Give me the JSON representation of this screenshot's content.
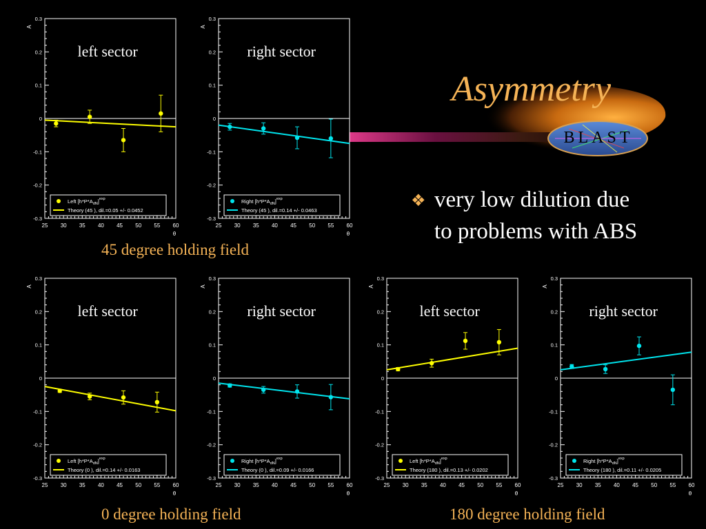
{
  "title": "Asymmetry",
  "logo_text": "BLAST",
  "bullet": {
    "marker": "❖",
    "line1": "very low dilution due",
    "line2": "to problems with ABS"
  },
  "captions": {
    "field45": "45 degree holding field",
    "field0": "0 degree holding field",
    "field180": "180 degree holding field"
  },
  "colors": {
    "caption": "#f5b356",
    "yellow": "#ffff00",
    "cyan": "#00e5ee"
  },
  "chart_data": [
    {
      "id": "p45L",
      "type": "scatter",
      "label": "left sector",
      "color": "#ffff00",
      "ylabel": "A",
      "xlabel": "θ",
      "xlim": [
        25,
        60
      ],
      "ylim": [
        -0.3,
        0.3
      ],
      "xticks": [
        "25",
        "30",
        "35",
        "40",
        "45",
        "50",
        "55",
        "60"
      ],
      "yticks": [
        "-0.3",
        "-0.2",
        "-0.1",
        "0",
        "0.1",
        "0.2",
        "0.3"
      ],
      "legend_data": "Left [h*P*A",
      "legend_sub": "dN",
      "legend_sup": "exp",
      "legend_close": "]",
      "legend_theory": "Theory (45 ), dil.=0.05 +/- 0.0452",
      "points": [
        {
          "x": 28.0,
          "y": -0.015,
          "err": 0.01
        },
        {
          "x": 37.0,
          "y": 0.005,
          "err": 0.02
        },
        {
          "x": 46.0,
          "y": -0.065,
          "err": 0.035
        },
        {
          "x": 56.0,
          "y": 0.015,
          "err": 0.055
        }
      ],
      "theory": [
        [
          25,
          -0.005
        ],
        [
          60,
          -0.025
        ]
      ]
    },
    {
      "id": "p45R",
      "type": "scatter",
      "label": "right sector",
      "color": "#00e5ee",
      "ylabel": "A",
      "xlabel": "θ",
      "xlim": [
        25,
        60
      ],
      "ylim": [
        -0.3,
        0.3
      ],
      "xticks": [
        "25",
        "30",
        "35",
        "40",
        "45",
        "50",
        "55",
        "60"
      ],
      "yticks": [
        "-0.3",
        "-0.2",
        "-0.1",
        "0",
        "0.1",
        "0.2",
        "0.3"
      ],
      "legend_data": "Right [h*P*A",
      "legend_sub": "dN",
      "legend_sup": "exp",
      "legend_close": "]",
      "legend_theory": "Theory (45 ), dil.=0.14 +/- 0.0463",
      "points": [
        {
          "x": 28.0,
          "y": -0.025,
          "err": 0.01
        },
        {
          "x": 37.0,
          "y": -0.03,
          "err": 0.017
        },
        {
          "x": 46.0,
          "y": -0.058,
          "err": 0.033
        },
        {
          "x": 55.0,
          "y": -0.06,
          "err": 0.058
        }
      ],
      "theory": [
        [
          25,
          -0.02
        ],
        [
          60,
          -0.075
        ]
      ]
    },
    {
      "id": "p0L",
      "type": "scatter",
      "label": "left sector",
      "color": "#ffff00",
      "ylabel": "A",
      "xlabel": "θ",
      "xlim": [
        25,
        60
      ],
      "ylim": [
        -0.3,
        0.3
      ],
      "xticks": [
        "25",
        "30",
        "35",
        "40",
        "45",
        "50",
        "55",
        "60"
      ],
      "yticks": [
        "-0.3",
        "-0.2",
        "-0.1",
        "0",
        "0.1",
        "0.2",
        "0.3"
      ],
      "legend_data": "Left [h*P*A",
      "legend_sub": "dN",
      "legend_sup": "exp",
      "legend_close": "]",
      "legend_theory": "Theory (0 ), dil.=0.14 +/- 0.0163",
      "points": [
        {
          "x": 29.0,
          "y": -0.038,
          "err": 0.005
        },
        {
          "x": 37.0,
          "y": -0.055,
          "err": 0.01
        },
        {
          "x": 46.0,
          "y": -0.058,
          "err": 0.02
        },
        {
          "x": 55.0,
          "y": -0.072,
          "err": 0.03
        }
      ],
      "theory": [
        [
          25,
          -0.025
        ],
        [
          60,
          -0.098
        ]
      ]
    },
    {
      "id": "p0R",
      "type": "scatter",
      "label": "right sector",
      "color": "#00e5ee",
      "ylabel": "A",
      "xlabel": "θ",
      "xlim": [
        25,
        60
      ],
      "ylim": [
        -0.3,
        0.3
      ],
      "xticks": [
        "25",
        "30",
        "35",
        "40",
        "45",
        "50",
        "55",
        "60"
      ],
      "yticks": [
        "-0.3",
        "-0.2",
        "-0.1",
        "0",
        "0.1",
        "0.2",
        "0.3"
      ],
      "legend_data": "Right [h*P*A",
      "legend_sub": "dN",
      "legend_sup": "exp",
      "legend_close": "]",
      "legend_theory": "Theory (0 ), dil.=0.09 +/- 0.0166",
      "points": [
        {
          "x": 28.0,
          "y": -0.022,
          "err": 0.005
        },
        {
          "x": 37.0,
          "y": -0.035,
          "err": 0.01
        },
        {
          "x": 46.0,
          "y": -0.04,
          "err": 0.02
        },
        {
          "x": 55.0,
          "y": -0.057,
          "err": 0.038
        }
      ],
      "theory": [
        [
          25,
          -0.015
        ],
        [
          60,
          -0.062
        ]
      ]
    },
    {
      "id": "p180L",
      "type": "scatter",
      "label": "left sector",
      "color": "#ffff00",
      "ylabel": "A",
      "xlabel": "θ",
      "xlim": [
        25,
        60
      ],
      "ylim": [
        -0.3,
        0.3
      ],
      "xticks": [
        "25",
        "30",
        "35",
        "40",
        "45",
        "50",
        "55",
        "60"
      ],
      "yticks": [
        "-0.3",
        "-0.2",
        "-0.1",
        "0",
        "0.1",
        "0.2",
        "0.3"
      ],
      "legend_data": "Left [h*P*A",
      "legend_sub": "dN",
      "legend_sup": "exp",
      "legend_close": "]",
      "legend_theory": "Theory (180 ), dil.=0.13 +/- 0.0202",
      "points": [
        {
          "x": 28.0,
          "y": 0.027,
          "err": 0.005
        },
        {
          "x": 37.0,
          "y": 0.045,
          "err": 0.012
        },
        {
          "x": 46.0,
          "y": 0.112,
          "err": 0.025
        },
        {
          "x": 55.0,
          "y": 0.108,
          "err": 0.038
        }
      ],
      "theory": [
        [
          25,
          0.025
        ],
        [
          60,
          0.09
        ]
      ]
    },
    {
      "id": "p180R",
      "type": "scatter",
      "label": "right sector",
      "color": "#00e5ee",
      "ylabel": "A",
      "xlabel": "θ",
      "xlim": [
        25,
        60
      ],
      "ylim": [
        -0.3,
        0.3
      ],
      "xticks": [
        "25",
        "30",
        "35",
        "40",
        "45",
        "50",
        "55",
        "60"
      ],
      "yticks": [
        "-0.3",
        "-0.2",
        "-0.1",
        "0",
        "0.1",
        "0.2",
        "0.3"
      ],
      "legend_data": "Right [h*P*A",
      "legend_sub": "dN",
      "legend_sup": "exp",
      "legend_close": "]",
      "legend_theory": "Theory (180 ), dil.=0.11 +/- 0.0205",
      "points": [
        {
          "x": 28.0,
          "y": 0.035,
          "err": 0.006
        },
        {
          "x": 37.0,
          "y": 0.027,
          "err": 0.013
        },
        {
          "x": 46.0,
          "y": 0.097,
          "err": 0.027
        },
        {
          "x": 55.0,
          "y": -0.035,
          "err": 0.045
        }
      ],
      "theory": [
        [
          25,
          0.025
        ],
        [
          60,
          0.078
        ]
      ]
    }
  ]
}
